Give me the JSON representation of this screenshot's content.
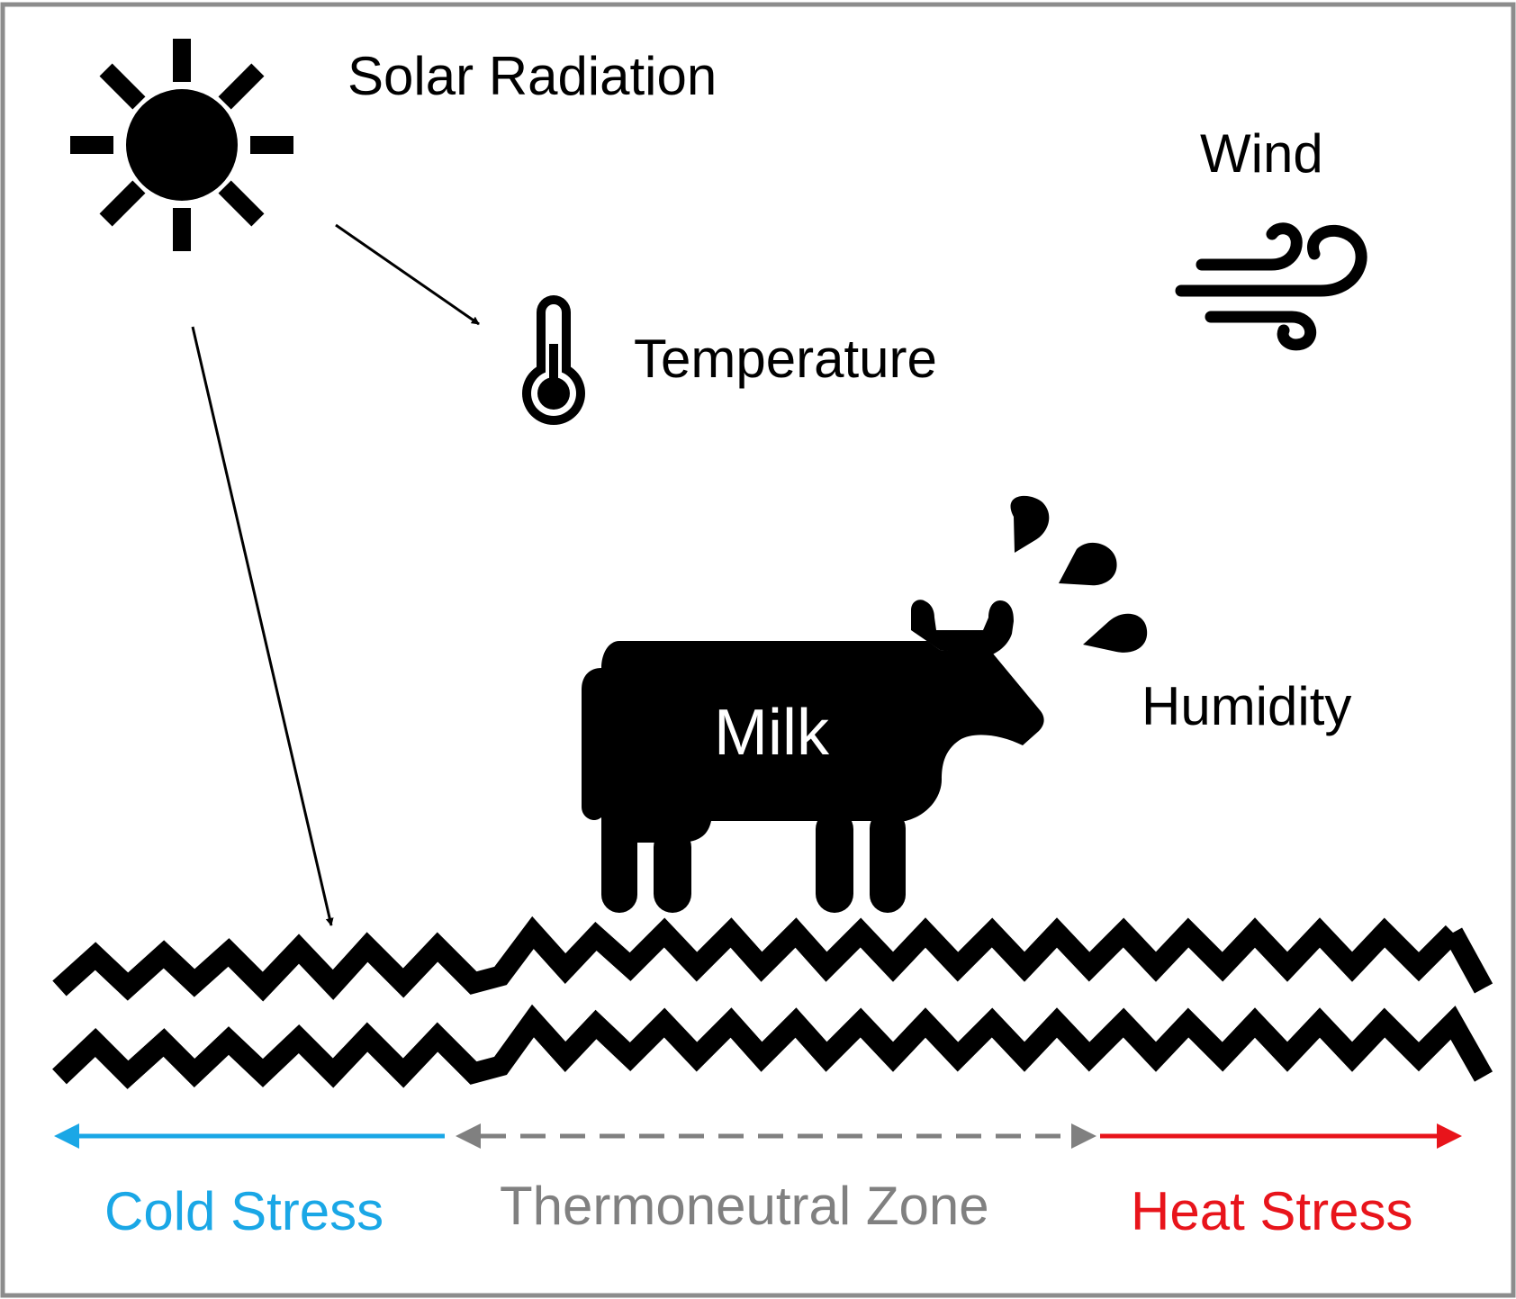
{
  "labels": {
    "solar_radiation": "Solar Radiation",
    "temperature": "Temperature",
    "wind": "Wind",
    "humidity": "Humidity",
    "milk": "Milk"
  },
  "zones": {
    "cold_stress": "Cold Stress",
    "thermoneutral_zone": "Thermoneutral Zone",
    "heat_stress": "Heat Stress"
  },
  "colors": {
    "cold": "#1AA7E6",
    "neutral": "#808080",
    "heat": "#E8141B",
    "ink": "#000000",
    "frame": "#8C8C8C"
  },
  "icons": [
    "sun-icon",
    "thermometer-icon",
    "wind-icon",
    "cow-icon",
    "water-drop-icon",
    "ground-zigzag-icon"
  ]
}
